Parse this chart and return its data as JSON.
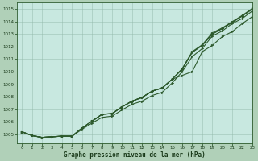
{
  "background_color": "#b0d0b8",
  "plot_bg_color": "#c8e8e0",
  "grid_color": "#90b8a8",
  "line_color": "#2d5a2d",
  "xlabel": "Graphe pression niveau de la mer (hPa)",
  "xlim": [
    -0.5,
    23
  ],
  "ylim": [
    1004.3,
    1015.5
  ],
  "yticks": [
    1005,
    1006,
    1007,
    1008,
    1009,
    1010,
    1011,
    1012,
    1013,
    1014,
    1015
  ],
  "xticks": [
    0,
    1,
    2,
    3,
    4,
    5,
    6,
    7,
    8,
    9,
    10,
    11,
    12,
    13,
    14,
    15,
    16,
    17,
    18,
    19,
    20,
    21,
    22,
    23
  ],
  "series": [
    [
      1005.2,
      1004.9,
      1004.75,
      1004.8,
      1004.85,
      1004.85,
      1005.4,
      1005.9,
      1006.35,
      1006.45,
      1006.95,
      1007.4,
      1007.65,
      1008.1,
      1008.35,
      1009.1,
      1010.0,
      1011.2,
      1011.85,
      1012.85,
      1013.25,
      1013.85,
      1014.25,
      1014.85
    ],
    [
      1005.2,
      1004.9,
      1004.75,
      1004.8,
      1004.85,
      1004.85,
      1005.5,
      1006.05,
      1006.6,
      1006.65,
      1007.2,
      1007.65,
      1007.95,
      1008.45,
      1008.7,
      1009.4,
      1010.2,
      1011.55,
      1012.1,
      1013.0,
      1013.45,
      1013.95,
      1014.45,
      1015.0
    ],
    [
      1005.2,
      1004.9,
      1004.75,
      1004.8,
      1004.85,
      1004.85,
      1005.5,
      1006.05,
      1006.6,
      1006.65,
      1007.2,
      1007.65,
      1007.95,
      1008.45,
      1008.7,
      1009.4,
      1010.2,
      1011.55,
      1012.1,
      1013.0,
      1013.45,
      1013.95,
      1014.45,
      1015.0
    ],
    [
      1005.2,
      1004.9,
      1004.75,
      1004.8,
      1004.85,
      1004.85,
      1005.5,
      1006.05,
      1006.6,
      1006.65,
      1007.2,
      1007.65,
      1007.95,
      1008.45,
      1008.7,
      1009.4,
      1010.25,
      1011.6,
      1012.15,
      1013.1,
      1013.5,
      1014.0,
      1014.5,
      1015.05
    ],
    [
      1005.2,
      1004.9,
      1004.75,
      1004.8,
      1004.85,
      1004.85,
      1005.5,
      1006.05,
      1006.6,
      1006.65,
      1007.2,
      1007.65,
      1007.95,
      1008.45,
      1008.7,
      1009.4,
      1009.7,
      1010.0,
      1011.6,
      1012.1,
      1012.8,
      1013.2,
      1013.85,
      1014.4
    ]
  ]
}
